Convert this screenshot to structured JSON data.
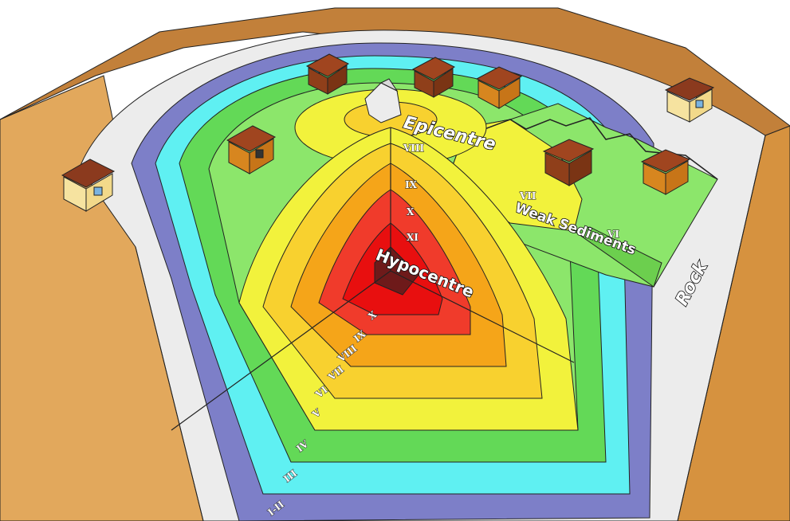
{
  "labels": {
    "epicentre": "Epicentre",
    "hypocentre": "Hypocentre",
    "weak_sediments": "Weak Sediments",
    "rock": "Rock"
  },
  "intensity_front": [
    "XI",
    "X",
    "IX",
    "VIII"
  ],
  "intensity_side": [
    "X",
    "IX",
    "VIII",
    "VII",
    "VI",
    "V",
    "IV",
    "III",
    "I-II"
  ],
  "sediment_labels": [
    "VII",
    "VI"
  ],
  "colors": {
    "I-II": "#e9e9e9",
    "III": "#7d7fc8",
    "IV": "#5ff0f2",
    "V": "#63d957",
    "VI": "#8ce66b",
    "VII": "#f2f23c",
    "VIII": "#f8d12f",
    "IX": "#f5a519",
    "X": "#f03b2b",
    "XI": "#e80f0f",
    "core": "#6e1a1a",
    "rock_side": "#c9863c",
    "rock_side_light": "#e7b062"
  }
}
